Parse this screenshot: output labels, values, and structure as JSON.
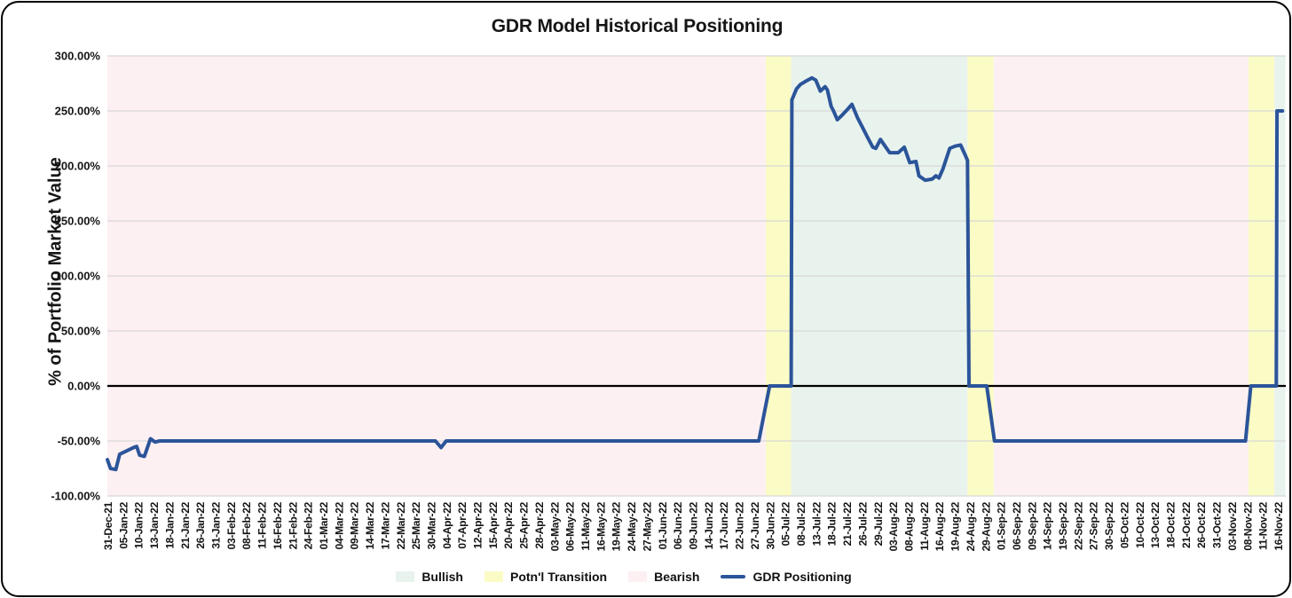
{
  "chart_data": {
    "type": "line",
    "title": "GDR Model Historical Positioning",
    "xlabel": "",
    "ylabel": "% of Portfolio Market Value",
    "ylim": [
      -100,
      300
    ],
    "grid": "horizontal",
    "legend_position": "bottom",
    "yticks": [
      {
        "value": 300,
        "label": "300.00%"
      },
      {
        "value": 250,
        "label": "250.00%"
      },
      {
        "value": 200,
        "label": "200.00%"
      },
      {
        "value": 150,
        "label": "150.00%"
      },
      {
        "value": 100,
        "label": "100.00%"
      },
      {
        "value": 50,
        "label": "50.00%"
      },
      {
        "value": 0,
        "label": "0.00%"
      },
      {
        "value": -50,
        "label": "-50.00%"
      },
      {
        "value": -100,
        "label": "-100.00%"
      }
    ],
    "categories": [
      "31-Dec-21",
      "05-Jan-22",
      "10-Jan-22",
      "13-Jan-22",
      "18-Jan-22",
      "21-Jan-22",
      "26-Jan-22",
      "31-Jan-22",
      "03-Feb-22",
      "08-Feb-22",
      "11-Feb-22",
      "16-Feb-22",
      "21-Feb-22",
      "24-Feb-22",
      "01-Mar-22",
      "04-Mar-22",
      "09-Mar-22",
      "14-Mar-22",
      "17-Mar-22",
      "22-Mar-22",
      "25-Mar-22",
      "30-Mar-22",
      "04-Apr-22",
      "07-Apr-22",
      "12-Apr-22",
      "15-Apr-22",
      "20-Apr-22",
      "25-Apr-22",
      "28-Apr-22",
      "03-May-22",
      "06-May-22",
      "11-May-22",
      "16-May-22",
      "19-May-22",
      "24-May-22",
      "27-May-22",
      "01-Jun-22",
      "06-Jun-22",
      "09-Jun-22",
      "14-Jun-22",
      "17-Jun-22",
      "22-Jun-22",
      "27-Jun-22",
      "30-Jun-22",
      "05-Jul-22",
      "08-Jul-22",
      "13-Jul-22",
      "18-Jul-22",
      "21-Jul-22",
      "26-Jul-22",
      "29-Jul-22",
      "03-Aug-22",
      "08-Aug-22",
      "11-Aug-22",
      "16-Aug-22",
      "19-Aug-22",
      "24-Aug-22",
      "29-Aug-22",
      "01-Sep-22",
      "06-Sep-22",
      "09-Sep-22",
      "14-Sep-22",
      "19-Sep-22",
      "22-Sep-22",
      "27-Sep-22",
      "30-Sep-22",
      "05-Oct-22",
      "10-Oct-22",
      "13-Oct-22",
      "18-Oct-22",
      "21-Oct-22",
      "26-Oct-22",
      "31-Oct-22",
      "03-Nov-22",
      "08-Nov-22",
      "11-Nov-22",
      "16-Nov-22"
    ],
    "x_domain": [
      0,
      76.5
    ],
    "bands": [
      {
        "label": "Bearish",
        "from": 0,
        "to": 42.75
      },
      {
        "label": "Potn'l Transition",
        "from": 42.75,
        "to": 44.4
      },
      {
        "label": "Bullish",
        "from": 44.4,
        "to": 55.85
      },
      {
        "label": "Potn'l Transition",
        "from": 55.85,
        "to": 57.55
      },
      {
        "label": "Bearish",
        "from": 57.55,
        "to": 74.1
      },
      {
        "label": "Potn'l Transition",
        "from": 74.1,
        "to": 75.78
      },
      {
        "label": "Bullish",
        "from": 75.78,
        "to": 76.5
      }
    ],
    "band_colors": {
      "Bullish": "#e9f3ee",
      "Potn'l Transition": "#fbfbc6",
      "Bearish": "#fdf0f2"
    },
    "series": [
      {
        "name": "GDR Positioning",
        "color": "#2b5499",
        "points": [
          [
            0,
            -67
          ],
          [
            0.2,
            -75
          ],
          [
            0.55,
            -76
          ],
          [
            0.8,
            -62
          ],
          [
            1.1,
            -60
          ],
          [
            1.4,
            -58
          ],
          [
            1.7,
            -56
          ],
          [
            1.9,
            -55
          ],
          [
            2.1,
            -63
          ],
          [
            2.4,
            -64
          ],
          [
            2.8,
            -48
          ],
          [
            3.1,
            -51
          ],
          [
            3.4,
            -50
          ],
          [
            21.3,
            -50
          ],
          [
            21.67,
            -56
          ],
          [
            22,
            -50
          ],
          [
            42.3,
            -50
          ],
          [
            43,
            0
          ],
          [
            44.4,
            0
          ],
          [
            44.45,
            260
          ],
          [
            44.75,
            270
          ],
          [
            45,
            274
          ],
          [
            45.35,
            277
          ],
          [
            45.75,
            280
          ],
          [
            46,
            278
          ],
          [
            46.3,
            268
          ],
          [
            46.6,
            272
          ],
          [
            46.75,
            269
          ],
          [
            47,
            254
          ],
          [
            47.15,
            250
          ],
          [
            47.4,
            242
          ],
          [
            47.7,
            246
          ],
          [
            48.1,
            252
          ],
          [
            48.35,
            256
          ],
          [
            48.7,
            244
          ],
          [
            49,
            236
          ],
          [
            49.4,
            225
          ],
          [
            49.7,
            217
          ],
          [
            49.9,
            216
          ],
          [
            50.2,
            224
          ],
          [
            50.5,
            218
          ],
          [
            50.8,
            212
          ],
          [
            51.35,
            212
          ],
          [
            51.75,
            217
          ],
          [
            52.1,
            203
          ],
          [
            52.5,
            204
          ],
          [
            52.7,
            191
          ],
          [
            53.1,
            187
          ],
          [
            53.55,
            188
          ],
          [
            53.8,
            191
          ],
          [
            54,
            189
          ],
          [
            54.25,
            197
          ],
          [
            54.7,
            216
          ],
          [
            55.05,
            218
          ],
          [
            55.4,
            219
          ],
          [
            55.7,
            210
          ],
          [
            55.85,
            205
          ],
          [
            55.95,
            0
          ],
          [
            57.1,
            0
          ],
          [
            57.6,
            -50
          ],
          [
            73.9,
            -50
          ],
          [
            74.25,
            0
          ],
          [
            75.9,
            0
          ],
          [
            75.95,
            250
          ],
          [
            76.3,
            250
          ]
        ]
      }
    ],
    "zero_line_color": "#000000",
    "gridline_color": "#d8d8d8"
  },
  "legend": {
    "items": [
      {
        "label": "Bullish",
        "type": "box",
        "color": "#e9f3ee"
      },
      {
        "label": "Potn'l Transition",
        "type": "box",
        "color": "#fbfbc6"
      },
      {
        "label": "Bearish",
        "type": "box",
        "color": "#fdf0f2"
      },
      {
        "label": "GDR Positioning",
        "type": "line",
        "color": "#2b5499"
      }
    ]
  },
  "colors": {
    "text": "#151515",
    "frame_border": "#000000"
  }
}
